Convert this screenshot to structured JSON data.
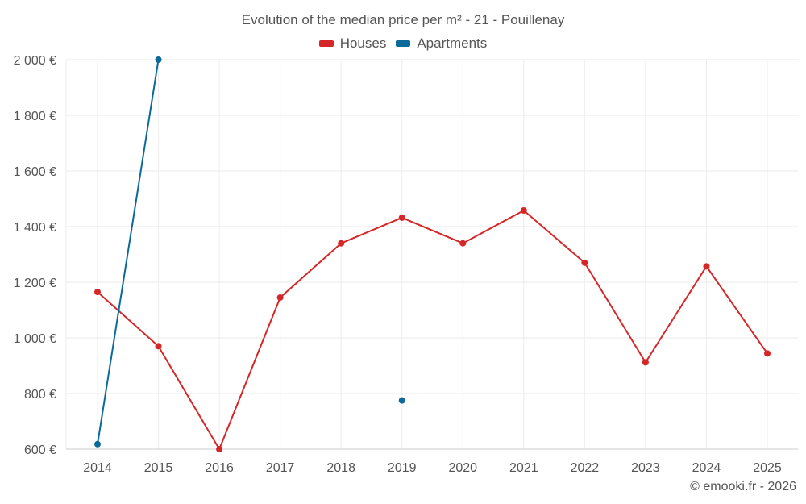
{
  "chart_data": {
    "type": "line",
    "title": "Evolution of the median price per m² - 21 - Pouillenay",
    "categories": [
      "2014",
      "2015",
      "2016",
      "2017",
      "2018",
      "2019",
      "2020",
      "2021",
      "2022",
      "2023",
      "2024",
      "2025"
    ],
    "ylim": [
      600,
      2000
    ],
    "y_ticks": [
      600,
      800,
      1000,
      1200,
      1400,
      1600,
      1800,
      2000
    ],
    "y_tick_labels": [
      "600 €",
      "800 €",
      "1 000 €",
      "1 200 €",
      "1 400 €",
      "1 600 €",
      "1 800 €",
      "2 000 €"
    ],
    "xlabel": "",
    "ylabel": "",
    "grid": true,
    "legend_position": "top-center",
    "series": [
      {
        "name": "Houses",
        "color": "#d62728",
        "values": [
          1165,
          970,
          600,
          1145,
          1340,
          1432,
          1340,
          1458,
          1270,
          912,
          1257,
          944
        ]
      },
      {
        "name": "Apartments",
        "color": "#0b6a9a",
        "values": [
          618,
          2000,
          null,
          null,
          null,
          775,
          null,
          null,
          null,
          null,
          null,
          null
        ]
      }
    ]
  },
  "footer": {
    "credit": "© emooki.fr - 2026"
  }
}
